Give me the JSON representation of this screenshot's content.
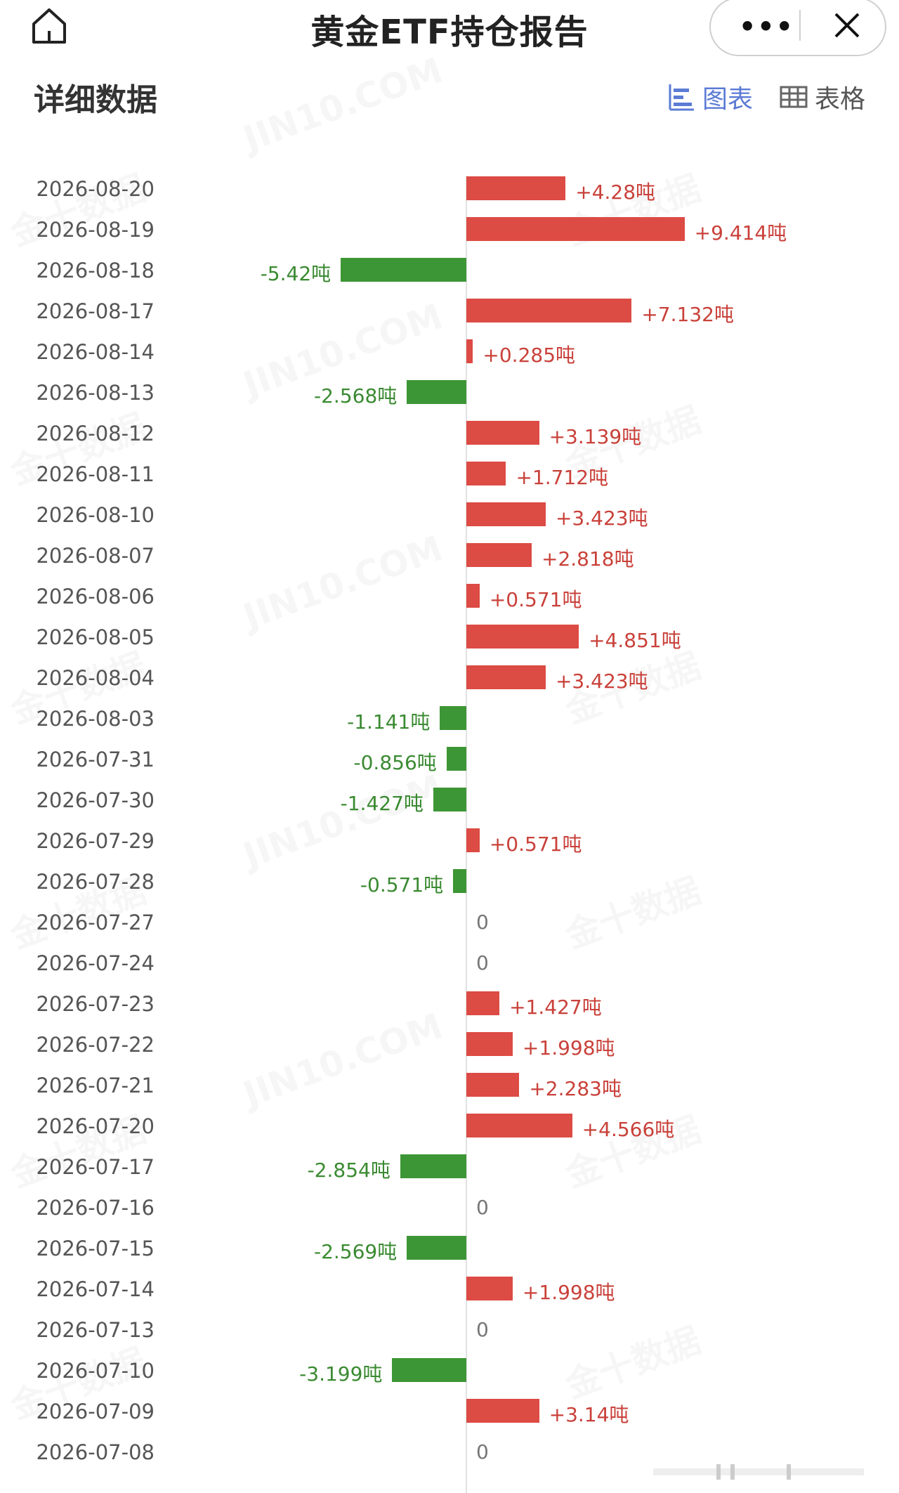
{
  "header": {
    "title": "黄金ETF持仓报告",
    "more_label": "•••"
  },
  "section": {
    "title": "详细数据",
    "toggle_chart": "图表",
    "toggle_table": "表格"
  },
  "watermark": {
    "text_en": "JIN10.COM",
    "text_cn": "金十数据"
  },
  "colors": {
    "positive": "#dc4b44",
    "negative": "#3d9635",
    "accent": "#5b7bd5"
  },
  "chart_data": {
    "type": "bar",
    "orientation": "horizontal",
    "categories": [
      "2026-08-20",
      "2026-08-19",
      "2026-08-18",
      "2026-08-17",
      "2026-08-14",
      "2026-08-13",
      "2026-08-12",
      "2026-08-11",
      "2026-08-10",
      "2026-08-07",
      "2026-08-06",
      "2026-08-05",
      "2026-08-04",
      "2026-08-03",
      "2026-07-31",
      "2026-07-30",
      "2026-07-29",
      "2026-07-28",
      "2026-07-27",
      "2026-07-24",
      "2026-07-23",
      "2026-07-22",
      "2026-07-21",
      "2026-07-20",
      "2026-07-17",
      "2026-07-16",
      "2026-07-15",
      "2026-07-14",
      "2026-07-13",
      "2026-07-10",
      "2026-07-09",
      "2026-07-08"
    ],
    "values": [
      4.28,
      9.414,
      -5.42,
      7.132,
      0.285,
      -2.568,
      3.139,
      1.712,
      3.423,
      2.818,
      0.571,
      4.851,
      3.423,
      -1.141,
      -0.856,
      -1.427,
      0.571,
      -0.571,
      0,
      0,
      1.427,
      1.998,
      2.283,
      4.566,
      -2.854,
      0,
      -2.569,
      1.998,
      0,
      -3.199,
      3.14,
      0
    ],
    "labels": [
      "+4.28吨",
      "+9.414吨",
      "-5.42吨",
      "+7.132吨",
      "+0.285吨",
      "-2.568吨",
      "+3.139吨",
      "+1.712吨",
      "+3.423吨",
      "+2.818吨",
      "+0.571吨",
      "+4.851吨",
      "+3.423吨",
      "-1.141吨",
      "-0.856吨",
      "-1.427吨",
      "+0.571吨",
      "-0.571吨",
      "0",
      "0",
      "+1.427吨",
      "+1.998吨",
      "+2.283吨",
      "+4.566吨",
      "-2.854吨",
      "0",
      "-2.569吨",
      "+1.998吨",
      "0",
      "-3.199吨",
      "+3.14吨",
      "0"
    ],
    "unit": "吨",
    "title": "",
    "xlabel": "",
    "ylabel": "",
    "grid": false
  }
}
